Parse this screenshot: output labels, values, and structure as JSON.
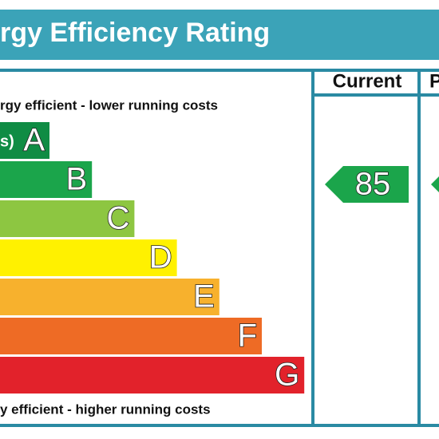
{
  "header": {
    "title": "rgy Efficiency Rating"
  },
  "columns": [
    "Current",
    "P"
  ],
  "top_note": "rgy efficient - lower running costs",
  "bottom_note": "y efficient - higher running costs",
  "bands": [
    {
      "range": "s)",
      "letter": "A",
      "color": "#0f8c44"
    },
    {
      "letter": "B",
      "color": "#1ba54b"
    },
    {
      "letter": "C",
      "color": "#8dc641"
    },
    {
      "letter": "D",
      "color": "#fff100"
    },
    {
      "letter": "E",
      "color": "#f7b12d"
    },
    {
      "letter": "F",
      "color": "#ee6b25"
    },
    {
      "letter": "G",
      "color": "#e2222b"
    }
  ],
  "current": {
    "value": 85,
    "color": "#1ba54b"
  },
  "potential": {
    "color": "#1ba54b"
  }
}
